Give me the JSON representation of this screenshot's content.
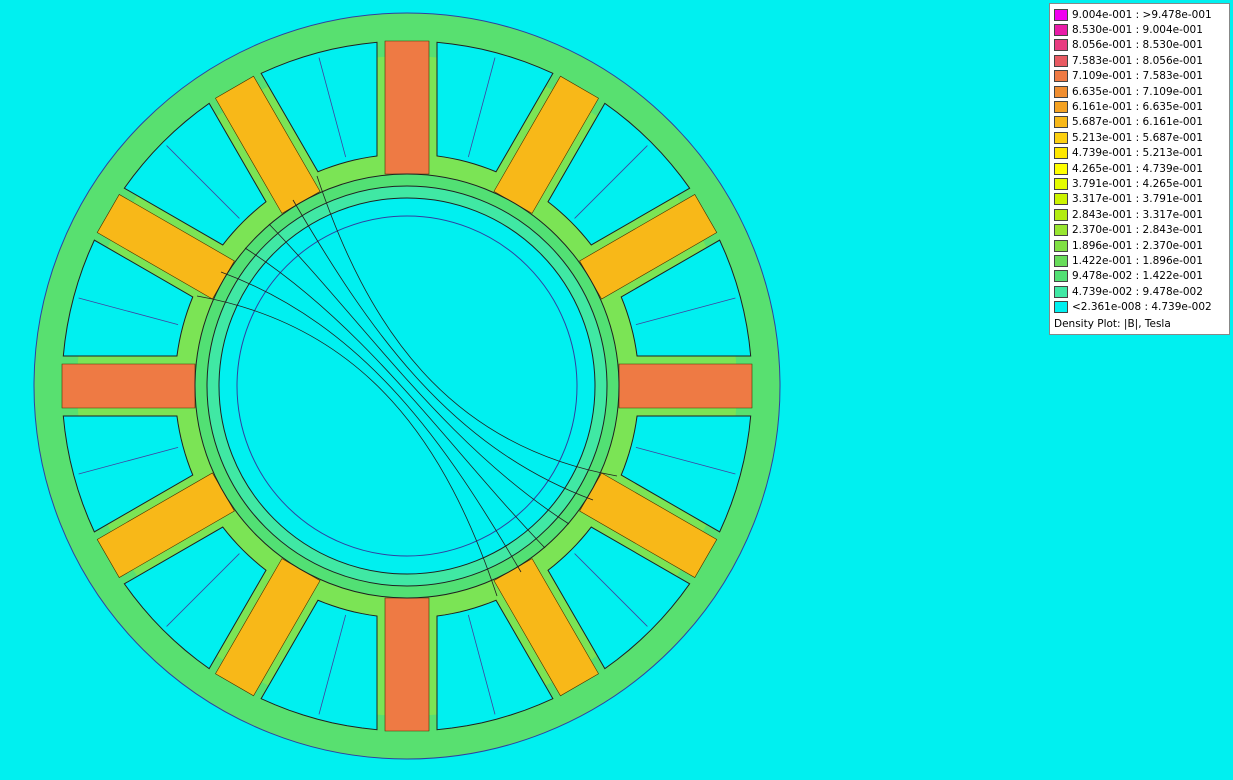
{
  "legend": {
    "entries": [
      {
        "label": "9.004e-001 : >9.478e-001",
        "color": "#f000f0"
      },
      {
        "label": "8.530e-001 : 9.004e-001",
        "color": "#e81ca8"
      },
      {
        "label": "8.056e-001 : 8.530e-001",
        "color": "#e83c80"
      },
      {
        "label": "7.583e-001 : 8.056e-001",
        "color": "#e85a62"
      },
      {
        "label": "7.109e-001 : 7.583e-001",
        "color": "#ee7a44"
      },
      {
        "label": "6.635e-001 : 7.109e-001",
        "color": "#f08e30"
      },
      {
        "label": "6.161e-001 : 6.635e-001",
        "color": "#f4a222"
      },
      {
        "label": "5.687e-001 : 6.161e-001",
        "color": "#f8b818"
      },
      {
        "label": "5.213e-001 : 5.687e-001",
        "color": "#fcd010"
      },
      {
        "label": "4.739e-001 : 5.213e-001",
        "color": "#ffe800"
      },
      {
        "label": "4.265e-001 : 4.739e-001",
        "color": "#ffff00"
      },
      {
        "label": "3.791e-001 : 4.265e-001",
        "color": "#e4fc00"
      },
      {
        "label": "3.317e-001 : 3.791e-001",
        "color": "#ccf400"
      },
      {
        "label": "2.843e-001 : 3.317e-001",
        "color": "#b2ec12"
      },
      {
        "label": "2.370e-001 : 2.843e-001",
        "color": "#98e630"
      },
      {
        "label": "1.896e-001 : 2.370e-001",
        "color": "#80e044"
      },
      {
        "label": "1.422e-001 : 1.896e-001",
        "color": "#68dc5a"
      },
      {
        "label": "9.478e-002 : 1.422e-001",
        "color": "#52e074"
      },
      {
        "label": "4.739e-002 : 9.478e-002",
        "color": "#40e8a4"
      },
      {
        "label": "<2.361e-008 : 4.739e-002",
        "color": "#00f0f0"
      }
    ],
    "caption": "Density Plot: |B|, Tesla"
  }
}
